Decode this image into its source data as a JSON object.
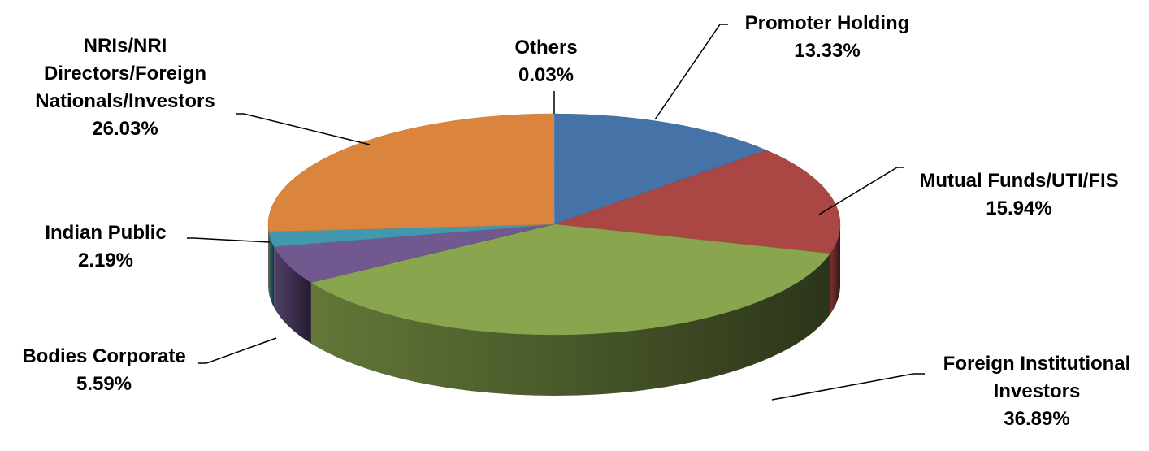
{
  "chart_data": {
    "type": "pie",
    "style": "3d",
    "title": "",
    "slices": [
      {
        "name": "Promoter Holding",
        "value": 13.33,
        "value_label": "13.33%",
        "color": "#4572A7",
        "label_lines": [
          "Promoter Holding"
        ]
      },
      {
        "name": "Mutual Funds/UTI/FIS",
        "value": 15.94,
        "value_label": "15.94%",
        "color": "#AA4643",
        "label_lines": [
          "Mutual Funds/UTI/FIS"
        ]
      },
      {
        "name": "Foreign Institutional Investors",
        "value": 36.89,
        "value_label": "36.89%",
        "color": "#89A54E",
        "label_lines": [
          "Foreign Institutional",
          "Investors"
        ]
      },
      {
        "name": "Bodies Corporate",
        "value": 5.59,
        "value_label": "5.59%",
        "color": "#71588F",
        "label_lines": [
          "Bodies Corporate"
        ]
      },
      {
        "name": "Indian Public",
        "value": 2.19,
        "value_label": "2.19%",
        "color": "#4198AF",
        "label_lines": [
          "Indian Public"
        ]
      },
      {
        "name": "NRIs/NRI Directors/Foreign Nationals/Investors",
        "value": 26.03,
        "value_label": "26.03%",
        "color": "#DB843D",
        "label_lines": [
          "NRIs/NRI",
          "Directors/Foreign",
          "Nationals/Investors"
        ]
      },
      {
        "name": "Others",
        "value": 0.03,
        "value_label": "0.03%",
        "color": "#93A9CF",
        "label_lines": [
          "Others"
        ]
      }
    ]
  }
}
